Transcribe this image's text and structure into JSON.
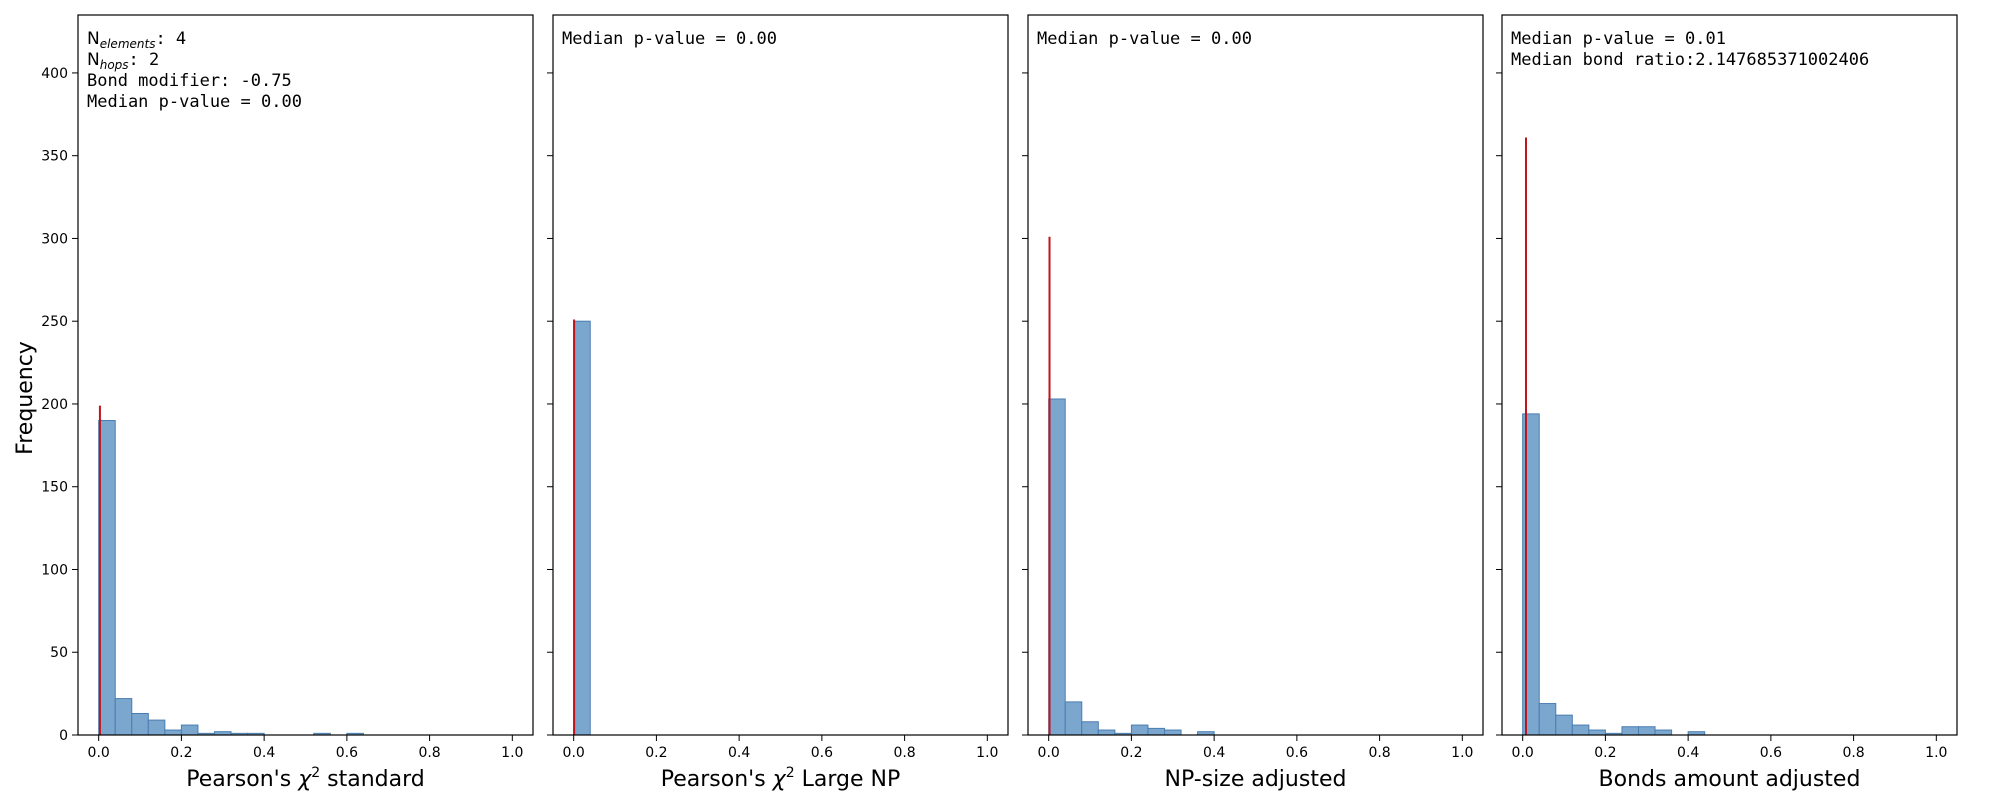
{
  "figure": {
    "ylabel": "Frequency",
    "colors": {
      "bar_fill": "#7ba7cf",
      "bar_edge": "#4a7db0",
      "median_line": "#c0141c",
      "axis": "#000000"
    }
  },
  "chart_data": [
    {
      "type": "bar",
      "title": "",
      "xlabel_pre": "Pearson's ",
      "xlabel_sym": "χ",
      "xlabel_sup": "2",
      "xlabel_post": " standard",
      "ylabel": "Frequency",
      "xlim": [
        -0.05,
        1.05
      ],
      "ylim": [
        0,
        435
      ],
      "xticks": [
        "0.0",
        "0.2",
        "0.4",
        "0.6",
        "0.8",
        "1.0"
      ],
      "yticks": [
        "0",
        "50",
        "100",
        "150",
        "200",
        "250",
        "300",
        "350",
        "400"
      ],
      "bin_width": 0.04,
      "bin_starts": [
        0.0,
        0.04,
        0.08,
        0.12,
        0.16,
        0.2,
        0.24,
        0.28,
        0.32,
        0.36,
        0.52,
        0.6
      ],
      "values": [
        190,
        22,
        13,
        9,
        3,
        6,
        1,
        2,
        1,
        1,
        1,
        1
      ],
      "median_line": {
        "x": 0.003,
        "height": 199
      },
      "annotations": {
        "n_elements_label": "N",
        "n_elements_sub": "elements",
        "n_elements_value": ": 4",
        "n_hops_label": "N",
        "n_hops_sub": "hops",
        "n_hops_value": ": 2",
        "bond_modifier": "Bond modifier: -0.75",
        "median_p": "Median p-value = 0.00"
      }
    },
    {
      "type": "bar",
      "title": "",
      "xlabel_pre": "Pearson's ",
      "xlabel_sym": "χ",
      "xlabel_sup": "2",
      "xlabel_post": " Large NP",
      "xlim": [
        -0.05,
        1.05
      ],
      "ylim": [
        0,
        435
      ],
      "xticks": [
        "0.0",
        "0.2",
        "0.4",
        "0.6",
        "0.8",
        "1.0"
      ],
      "bin_width": 0.04,
      "bin_starts": [
        0.0
      ],
      "values": [
        250
      ],
      "median_line": {
        "x": 0.001,
        "height": 251
      },
      "annotations": {
        "median_p": "Median p-value = 0.00"
      }
    },
    {
      "type": "bar",
      "title": "",
      "xlabel": "NP-size adjusted",
      "xlim": [
        -0.05,
        1.05
      ],
      "ylim": [
        0,
        435
      ],
      "xticks": [
        "0.0",
        "0.2",
        "0.4",
        "0.6",
        "0.8",
        "1.0"
      ],
      "bin_width": 0.04,
      "bin_starts": [
        0.0,
        0.04,
        0.08,
        0.12,
        0.16,
        0.2,
        0.24,
        0.28,
        0.36
      ],
      "values": [
        203,
        20,
        8,
        3,
        1,
        6,
        4,
        3,
        2
      ],
      "median_line": {
        "x": 0.002,
        "height": 301
      },
      "annotations": {
        "median_p": "Median p-value = 0.00"
      }
    },
    {
      "type": "bar",
      "title": "",
      "xlabel": "Bonds amount adjusted",
      "xlim": [
        -0.05,
        1.05
      ],
      "ylim": [
        0,
        435
      ],
      "xticks": [
        "0.0",
        "0.2",
        "0.4",
        "0.6",
        "0.8",
        "1.0"
      ],
      "bin_width": 0.04,
      "bin_starts": [
        0.0,
        0.04,
        0.08,
        0.12,
        0.16,
        0.2,
        0.24,
        0.28,
        0.32,
        0.36,
        0.4
      ],
      "values": [
        194,
        19,
        12,
        6,
        3,
        1,
        5,
        5,
        3,
        0,
        2
      ],
      "median_line": {
        "x": 0.008,
        "height": 361
      },
      "annotations": {
        "median_p": "Median p-value = 0.01",
        "bond_ratio": "Median bond ratio:2.147685371002406"
      }
    }
  ]
}
